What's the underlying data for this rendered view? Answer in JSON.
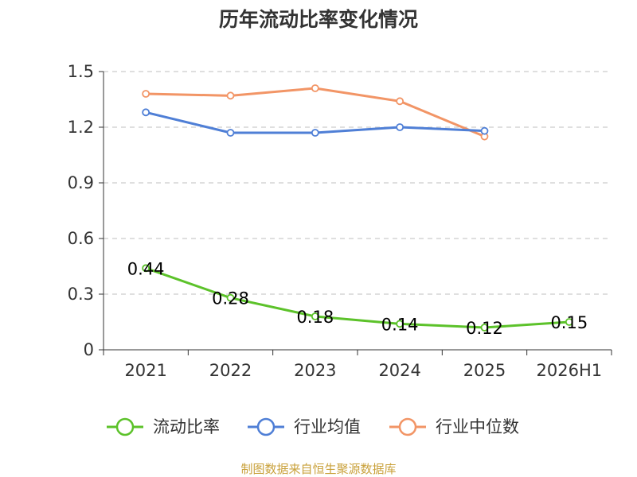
{
  "chart_data": {
    "type": "line",
    "title": "历年流动比率变化情况",
    "categories": [
      "2021",
      "2022",
      "2023",
      "2024",
      "2025",
      "2026H1"
    ],
    "ylim": [
      0,
      1.5
    ],
    "yticks": [
      "0",
      "0.3",
      "0.6",
      "0.9",
      "1.2",
      "1.5"
    ],
    "ytick_values": [
      0,
      0.3,
      0.6,
      0.9,
      1.2,
      1.5
    ],
    "grid": true,
    "legend_position": "bottom",
    "series": [
      {
        "name": "流动比率",
        "color": "#5cc22a",
        "values": [
          0.44,
          0.28,
          0.18,
          0.14,
          0.12,
          0.15
        ],
        "labels": [
          "0.44",
          "0.28",
          "0.18",
          "0.14",
          "0.12",
          "0.15"
        ]
      },
      {
        "name": "行业均值",
        "color": "#4f7fd6",
        "values": [
          1.28,
          1.17,
          1.17,
          1.2,
          1.18,
          null
        ]
      },
      {
        "name": "行业中位数",
        "color": "#f29566",
        "values": [
          1.38,
          1.37,
          1.41,
          1.34,
          1.15,
          null
        ]
      }
    ],
    "source": "制图数据来自恒生聚源数据库"
  }
}
